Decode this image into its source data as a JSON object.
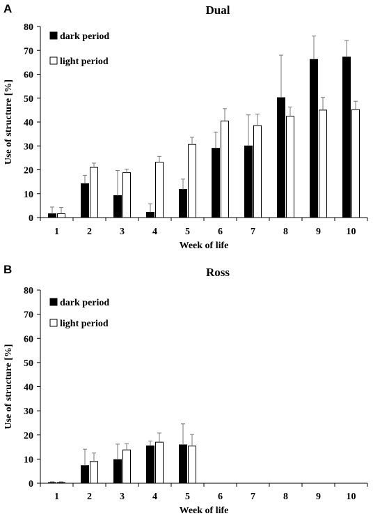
{
  "chart_data": [
    {
      "panel_label": "A",
      "type": "bar",
      "title": "Dual",
      "xlabel": "Week of life",
      "ylabel": "Use of structure [%]",
      "ylim": [
        0,
        80
      ],
      "yticks": [
        "0",
        "10",
        "20",
        "30",
        "40",
        "50",
        "60",
        "70",
        "80"
      ],
      "categories": [
        "1",
        "2",
        "3",
        "4",
        "5",
        "6",
        "7",
        "8",
        "9",
        "10"
      ],
      "grid": false,
      "legend_position": "top-left",
      "series": [
        {
          "name": "dark period",
          "color": "#000000",
          "values": [
            1.6,
            14.2,
            9.2,
            2.2,
            11.8,
            29.0,
            30.0,
            50.2,
            66.2,
            67.2
          ],
          "errors": [
            2.8,
            3.5,
            10.5,
            3.6,
            4.3,
            6.8,
            13.0,
            17.8,
            9.8,
            6.9
          ]
        },
        {
          "name": "light period",
          "color": "#ffffff",
          "values": [
            1.6,
            21.0,
            18.8,
            23.2,
            30.6,
            40.4,
            38.5,
            42.4,
            45.0,
            45.2
          ],
          "errors": [
            2.6,
            1.8,
            1.5,
            2.4,
            3.0,
            5.2,
            4.8,
            3.9,
            5.3,
            3.5
          ]
        }
      ]
    },
    {
      "panel_label": "B",
      "type": "bar",
      "title": "Ross",
      "xlabel": "Week of life",
      "ylabel": "Use of structure [%]",
      "ylim": [
        0,
        80
      ],
      "yticks": [
        "0",
        "10",
        "20",
        "30",
        "40",
        "50",
        "60",
        "70",
        "80"
      ],
      "categories": [
        "1",
        "2",
        "3",
        "4",
        "5",
        "6",
        "7",
        "8",
        "9",
        "10"
      ],
      "grid": false,
      "legend_position": "top-left",
      "series": [
        {
          "name": "dark period",
          "color": "#000000",
          "values": [
            0.3,
            7.3,
            9.8,
            15.5,
            15.9,
            null,
            null,
            null,
            null,
            null
          ],
          "errors": [
            0.3,
            6.8,
            6.4,
            2.0,
            8.7,
            null,
            null,
            null,
            null,
            null
          ]
        },
        {
          "name": "light period",
          "color": "#ffffff",
          "values": [
            0.3,
            9.0,
            13.8,
            17.0,
            15.4,
            null,
            null,
            null,
            null,
            null
          ],
          "errors": [
            0.3,
            3.5,
            2.6,
            3.8,
            4.8,
            null,
            null,
            null,
            null,
            null
          ]
        }
      ]
    }
  ]
}
